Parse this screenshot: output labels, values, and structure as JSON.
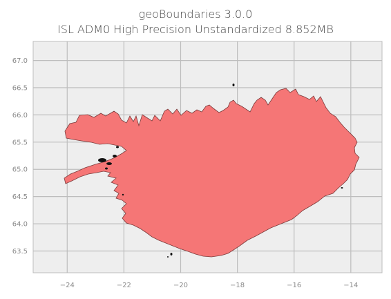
{
  "map": {
    "title": "geoBoundaries 3.0.0",
    "subtitle": "ISL ADM0 High Precision Unstandardized 8.852MB",
    "colors": {
      "fill": "#f57676",
      "stroke": "#7a3b3b",
      "plot_background": "#eeeeee",
      "grid": "#bdbdbd",
      "islands": "#111111"
    },
    "x_axis": {
      "range": [
        -25.2,
        -12.9
      ],
      "ticks": [
        -24,
        -22,
        -20,
        -18,
        -16,
        -14
      ],
      "tick_labels": [
        "−24",
        "−22",
        "−20",
        "−18",
        "−16",
        "−14"
      ]
    },
    "y_axis": {
      "range": [
        63.1,
        67.35
      ],
      "ticks": [
        63.5,
        64.0,
        64.5,
        65.0,
        65.5,
        66.0,
        66.5,
        67.0
      ],
      "tick_labels": [
        "63.5",
        "64.0",
        "64.5",
        "65.0",
        "65.5",
        "66.0",
        "66.5",
        "67.0"
      ]
    },
    "grid": true,
    "icons": [
      "iceland-shape"
    ]
  }
}
